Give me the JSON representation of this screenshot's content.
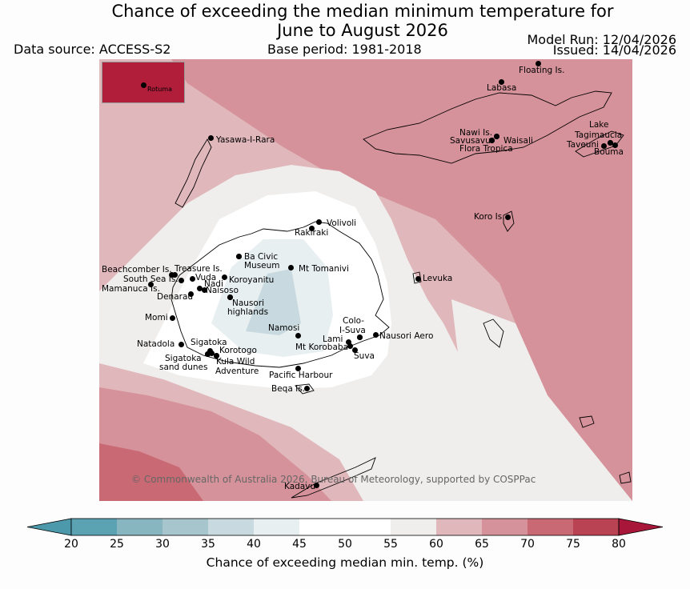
{
  "title_line1": "Chance of exceeding the median minimum temperature for",
  "title_line2": "June to August 2026",
  "data_source": "Data source: ACCESS-S2",
  "base_period": "Base period: 1981-2018",
  "model_run": "Model Run: 12/04/2026",
  "issued": "Issued: 14/04/2026",
  "credit": "© Commonwealth of Australia 2026, Bureau of Meteorology, supported by COSPPac",
  "inset_label": "Rotuma",
  "colorbar": {
    "label": "Chance of exceeding median min. temp. (%)",
    "ticks": [
      "20",
      "25",
      "30",
      "35",
      "40",
      "45",
      "50",
      "55",
      "60",
      "65",
      "70",
      "75",
      "80"
    ],
    "colors": [
      "#5ba2b3",
      "#87b5c0",
      "#a7c5cc",
      "#c8dadf",
      "#e8eff1",
      "#ffffff",
      "#ffffff",
      "#efeeec",
      "#e0b7bb",
      "#d6929a",
      "#c96973",
      "#ba4353",
      "#a8163a"
    ],
    "below_color": "#4b99ab",
    "above_color": "#a8163a"
  },
  "places": [
    {
      "name": "Floating Is."
    },
    {
      "name": "Labasa"
    },
    {
      "name": "Nawi Is."
    },
    {
      "name": "Savusavu"
    },
    {
      "name": "Flora Tropica"
    },
    {
      "name": "Waisali"
    },
    {
      "name": "Lake"
    },
    {
      "name": "Tagimaucia"
    },
    {
      "name": "Taveuni"
    },
    {
      "name": "Bouma"
    },
    {
      "name": "Yasawa-I-Rara"
    },
    {
      "name": "Koro Is."
    },
    {
      "name": "Volivoli"
    },
    {
      "name": "Rakiraki"
    },
    {
      "name": "Ba Civic"
    },
    {
      "name": "Museum"
    },
    {
      "name": "Mt Tomanivi"
    },
    {
      "name": "Beachcomber Is."
    },
    {
      "name": "Treasure Is."
    },
    {
      "name": "South Sea Is."
    },
    {
      "name": "Vuda"
    },
    {
      "name": "Koroyanitu"
    },
    {
      "name": "Nadi"
    },
    {
      "name": "Mamanuca Is."
    },
    {
      "name": "Naisoso"
    },
    {
      "name": "Denarau"
    },
    {
      "name": "Levuka"
    },
    {
      "name": "Nausori"
    },
    {
      "name": "highlands"
    },
    {
      "name": "Momi"
    },
    {
      "name": "Colo-"
    },
    {
      "name": "I-Suva"
    },
    {
      "name": "Namosi"
    },
    {
      "name": "Lami"
    },
    {
      "name": "Nausori Aero"
    },
    {
      "name": "Natadola"
    },
    {
      "name": "Sigatoka"
    },
    {
      "name": "Mt Korobaba"
    },
    {
      "name": "Korotogo"
    },
    {
      "name": "Suva"
    },
    {
      "name": "Sigatoka"
    },
    {
      "name": "sand dunes"
    },
    {
      "name": "Kula Wild"
    },
    {
      "name": "Adventure"
    },
    {
      "name": "Pacific Harbour"
    },
    {
      "name": "Beqa Is."
    },
    {
      "name": "Kadavu"
    }
  ]
}
